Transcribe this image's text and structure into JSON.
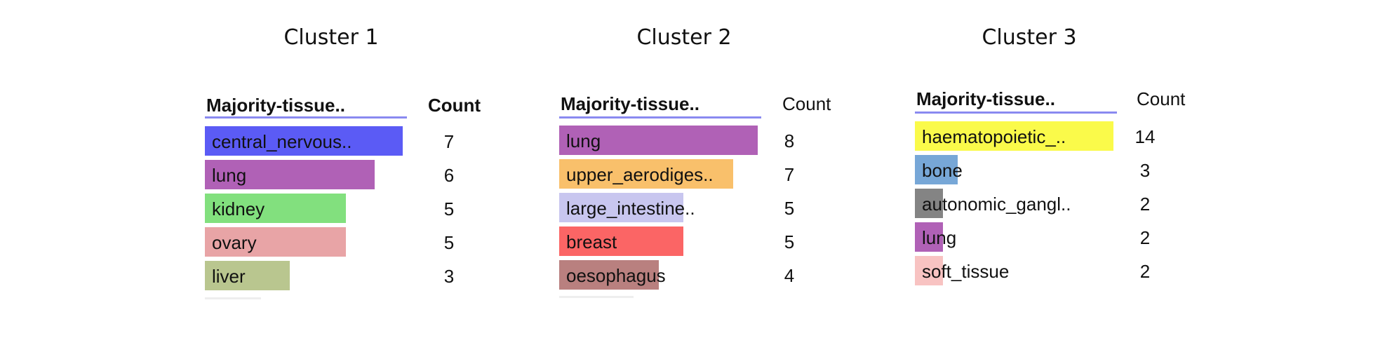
{
  "chart_data": [
    {
      "type": "table",
      "title": "Cluster 1",
      "column_headers": [
        "Majority-tissue..",
        "Count"
      ],
      "categories": [
        "central_nervous..",
        "lung",
        "kidney",
        "ovary",
        "liver"
      ],
      "values": [
        7,
        6,
        5,
        5,
        3
      ],
      "colors": [
        "#5b5bf5",
        "#b061b6",
        "#82e07e",
        "#e8a4a6",
        "#b9c68f"
      ],
      "xlim": [
        0,
        7
      ]
    },
    {
      "type": "table",
      "title": "Cluster 2",
      "column_headers": [
        "Majority-tissue..",
        "Count"
      ],
      "categories": [
        "lung",
        "upper_aerodiges..",
        "large_intestine..",
        "breast",
        "oesophagus"
      ],
      "values": [
        8,
        7,
        5,
        5,
        4
      ],
      "colors": [
        "#b061b6",
        "#f9c06b",
        "#c8c6ef",
        "#fb6565",
        "#b9807f"
      ],
      "xlim": [
        0,
        8
      ]
    },
    {
      "type": "table",
      "title": "Cluster 3",
      "column_headers": [
        "Majority-tissue..",
        "Count"
      ],
      "categories": [
        "haematopoietic_..",
        "bone",
        "autonomic_gangl..",
        "lung",
        "soft_tissue"
      ],
      "values": [
        14,
        3,
        2,
        2,
        2
      ],
      "colors": [
        "#fafa4a",
        "#77a7d7",
        "#848484",
        "#b061b6",
        "#f8c3c2"
      ],
      "xlim": [
        0,
        14
      ]
    }
  ]
}
